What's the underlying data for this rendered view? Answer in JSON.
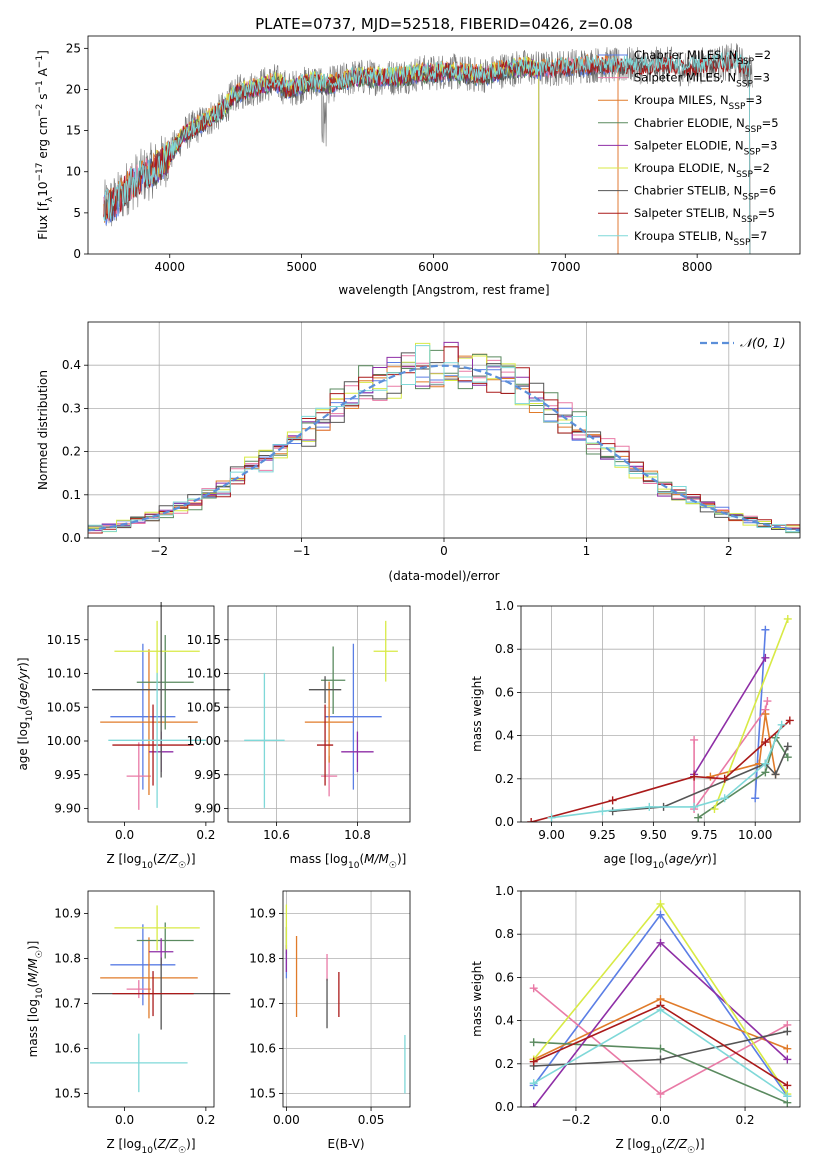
{
  "figure": {
    "title": "PLATE=0737, MJD=52518, FIBERID=0426, z=0.08"
  },
  "colors": {
    "chabrier_miles": "#5b7ee5",
    "salpeter_miles": "#e97aa6",
    "kroupa_miles": "#e07b2a",
    "chabrier_elodie": "#5a8a5f",
    "salpeter_elodie": "#8e2ea6",
    "kroupa_elodie": "#d8ea45",
    "chabrier_stelib": "#555555",
    "salpeter_stelib": "#aa1a1a",
    "kroupa_stelib": "#7fd8d8",
    "normal_curve": "#5b8fd9",
    "grid": "#b0b0b0"
  },
  "chart_data": [
    {
      "type": "line",
      "panel": "spectrum",
      "title": "PLATE=0737, MJD=52518, FIBERID=0426, z=0.08",
      "xlabel": "wavelength [Angstrom, rest frame]",
      "ylabel": "Flux [f_λ 10^-17 erg cm^-2 s^-1 A^-1]",
      "xlim": [
        3380,
        8780
      ],
      "ylim": [
        0,
        26.5
      ],
      "xticks": [
        4000,
        5000,
        6000,
        7000,
        8000
      ],
      "yticks": [
        0,
        5,
        10,
        15,
        20,
        25
      ],
      "grid": false,
      "legend_position": "top-right",
      "data_continuum_x": [
        3500,
        3600,
        3700,
        3800,
        3900,
        4000,
        4100,
        4200,
        4300,
        4400,
        4500,
        4600,
        4700,
        4800,
        4900,
        5000,
        5100,
        5200,
        5300,
        5400,
        5500,
        5600,
        5700,
        5800,
        5900,
        6000,
        6100,
        6200,
        6300,
        6400,
        6500,
        6600,
        6700,
        6800,
        6900,
        7000,
        7100,
        7200,
        7300,
        7400,
        7500,
        7600,
        7700,
        7800,
        7900,
        8000,
        8100,
        8200,
        8300,
        8400
      ],
      "data_continuum_y": [
        5.5,
        6.5,
        8.5,
        9.5,
        10.5,
        12.0,
        14.5,
        15.5,
        16.5,
        17.5,
        19.5,
        20.0,
        20.5,
        21.0,
        20.0,
        20.5,
        21.0,
        20.5,
        21.0,
        21.5,
        21.5,
        21.5,
        21.5,
        21.7,
        22.0,
        22.0,
        22.3,
        22.0,
        21.8,
        21.8,
        22.3,
        22.5,
        22.7,
        22.5,
        22.5,
        22.8,
        22.8,
        23.0,
        23.0,
        22.8,
        23.0,
        22.8,
        23.0,
        23.0,
        22.5,
        22.8,
        23.2,
        23.2,
        23.5,
        22.0
      ],
      "series": [
        {
          "name": "Chabrier MILES, N_SSP=2",
          "key": "chabrier_miles",
          "x_range": [
            3500,
            7400
          ]
        },
        {
          "name": "Salpeter MILES, N_SSP=3",
          "key": "salpeter_miles",
          "x_range": [
            3500,
            7400
          ]
        },
        {
          "name": "Kroupa MILES, N_SSP=3",
          "key": "kroupa_miles",
          "x_range": [
            3500,
            7400
          ]
        },
        {
          "name": "Chabrier ELODIE, N_SSP=5",
          "key": "chabrier_elodie",
          "x_range": [
            3900,
            6800
          ]
        },
        {
          "name": "Salpeter ELODIE, N_SSP=3",
          "key": "salpeter_elodie",
          "x_range": [
            3900,
            6800
          ]
        },
        {
          "name": "Kroupa ELODIE, N_SSP=2",
          "key": "kroupa_elodie",
          "x_range": [
            3900,
            6800
          ]
        },
        {
          "name": "Chabrier STELIB, N_SSP=6",
          "key": "chabrier_stelib",
          "x_range": [
            3500,
            8400
          ]
        },
        {
          "name": "Salpeter STELIB, N_SSP=5",
          "key": "salpeter_stelib",
          "x_range": [
            3500,
            8400
          ]
        },
        {
          "name": "Kroupa STELIB, N_SSP=7",
          "key": "kroupa_stelib",
          "x_range": [
            3500,
            8400
          ]
        }
      ]
    },
    {
      "type": "histogram",
      "panel": "residuals",
      "xlabel": "(data-model)/error",
      "ylabel": "Normed distribution",
      "xlim": [
        -2.5,
        2.5
      ],
      "ylim": [
        0,
        0.5
      ],
      "xticks": [
        -2,
        -1,
        0,
        1,
        2
      ],
      "yticks": [
        0.0,
        0.1,
        0.2,
        0.3,
        0.4
      ],
      "grid": true,
      "legend_position": "top-right",
      "legend_label": "N(0,1)",
      "bin_width": 0.1
    },
    {
      "type": "scatter",
      "panel": "age-vs-Z",
      "xlabel": "Z [log10(Z/Z☉)]",
      "ylabel": "age [log10(age/yr)]",
      "xlim": [
        -0.09,
        0.22
      ],
      "ylim": [
        9.88,
        10.2
      ],
      "xticks": [
        0.0,
        0.2
      ],
      "yticks": [
        9.9,
        9.95,
        10.0,
        10.05,
        10.1,
        10.15
      ],
      "grid": false,
      "points": [
        {
          "key": "chabrier_miles",
          "x": 0.045,
          "xerr": 0.08,
          "y": 10.036,
          "yerr": 0.108
        },
        {
          "key": "salpeter_miles",
          "x": 0.035,
          "xerr": 0.03,
          "y": 9.948,
          "yerr": 0.05
        },
        {
          "key": "kroupa_miles",
          "x": 0.06,
          "xerr": 0.12,
          "y": 10.028,
          "yerr": 0.108
        },
        {
          "key": "chabrier_elodie",
          "x": 0.1,
          "xerr": 0.07,
          "y": 10.087,
          "yerr": 0.07
        },
        {
          "key": "salpeter_elodie",
          "x": 0.09,
          "xerr": 0.03,
          "y": 9.984,
          "yerr": 0.03
        },
        {
          "key": "kroupa_elodie",
          "x": 0.08,
          "xerr": 0.105,
          "y": 10.133,
          "yerr": 0.045
        },
        {
          "key": "chabrier_stelib",
          "x": 0.09,
          "xerr": 0.17,
          "y": 10.076,
          "yerr": 0.13
        },
        {
          "key": "salpeter_stelib",
          "x": 0.07,
          "xerr": 0.1,
          "y": 9.994,
          "yerr": 0.06
        },
        {
          "key": "kroupa_stelib",
          "x": 0.08,
          "xerr": 0.12,
          "y": 10.001,
          "yerr": 0.1
        }
      ]
    },
    {
      "type": "scatter",
      "panel": "age-vs-mass",
      "xlabel": "mass [log10(M/M☉)]",
      "ylabel": "",
      "xlim": [
        10.48,
        10.93
      ],
      "ylim": [
        9.88,
        10.2
      ],
      "xticks": [
        10.6,
        10.8
      ],
      "yticks": [
        9.9,
        9.95,
        10.0,
        10.05,
        10.1,
        10.15
      ],
      "grid": true,
      "points": [
        {
          "key": "chabrier_miles",
          "x": 10.79,
          "xerr": 0.07,
          "y": 10.036,
          "yerr": 0.108
        },
        {
          "key": "salpeter_miles",
          "x": 10.73,
          "xerr": 0.02,
          "y": 9.948,
          "yerr": 0.03
        },
        {
          "key": "kroupa_miles",
          "x": 10.73,
          "xerr": 0.06,
          "y": 10.028,
          "yerr": 0.06
        },
        {
          "key": "chabrier_elodie",
          "x": 10.74,
          "xerr": 0.03,
          "y": 10.09,
          "yerr": 0.05
        },
        {
          "key": "salpeter_elodie",
          "x": 10.8,
          "xerr": 0.04,
          "y": 9.984,
          "yerr": 0.03
        },
        {
          "key": "kroupa_elodie",
          "x": 10.87,
          "xerr": 0.03,
          "y": 10.133,
          "yerr": 0.045
        },
        {
          "key": "chabrier_stelib",
          "x": 10.72,
          "xerr": 0.04,
          "y": 10.076,
          "yerr": 0.02
        },
        {
          "key": "salpeter_stelib",
          "x": 10.72,
          "xerr": 0.02,
          "y": 9.994,
          "yerr": 0.06
        },
        {
          "key": "kroupa_stelib",
          "x": 10.57,
          "xerr": 0.05,
          "y": 10.001,
          "yerr": 0.1
        }
      ]
    },
    {
      "type": "line",
      "panel": "mass-weight-vs-age",
      "xlabel": "age [log10(age/yr)]",
      "ylabel": "mass weight",
      "xlim": [
        8.85,
        10.22
      ],
      "ylim": [
        0,
        1.0
      ],
      "xticks": [
        9.0,
        9.25,
        9.5,
        9.75,
        10.0
      ],
      "yticks": [
        0.0,
        0.2,
        0.4,
        0.6,
        0.8,
        1.0
      ],
      "grid": true,
      "series": [
        {
          "key": "chabrier_miles",
          "x": [
            10.0,
            10.05
          ],
          "y": [
            0.11,
            0.89
          ]
        },
        {
          "key": "salpeter_miles",
          "x": [
            9.7,
            9.7,
            10.05,
            10.06
          ],
          "y": [
            0.38,
            0.06,
            0.52,
            0.56
          ]
        },
        {
          "key": "kroupa_miles",
          "x": [
            9.78,
            10.02,
            10.05,
            10.1
          ],
          "y": [
            0.21,
            0.27,
            0.5,
            0.22
          ]
        },
        {
          "key": "chabrier_elodie",
          "x": [
            9.72,
            10.05,
            10.1,
            10.16
          ],
          "y": [
            0.02,
            0.23,
            0.39,
            0.3
          ]
        },
        {
          "key": "salpeter_elodie",
          "x": [
            9.7,
            10.05
          ],
          "y": [
            0.22,
            0.76
          ]
        },
        {
          "key": "kroupa_elodie",
          "x": [
            9.8,
            10.16
          ],
          "y": [
            0.06,
            0.94
          ]
        },
        {
          "key": "chabrier_stelib",
          "x": [
            9.3,
            9.55,
            10.05,
            10.1,
            10.16
          ],
          "y": [
            0.05,
            0.07,
            0.27,
            0.22,
            0.35
          ]
        },
        {
          "key": "salpeter_stelib",
          "x": [
            8.9,
            9.3,
            9.7,
            9.85,
            10.05,
            10.17
          ],
          "y": [
            0.0,
            0.1,
            0.21,
            0.2,
            0.37,
            0.47
          ]
        },
        {
          "key": "kroupa_stelib",
          "x": [
            9.0,
            9.25,
            9.48,
            9.7,
            9.85,
            10.05,
            10.13
          ],
          "y": [
            0.02,
            0.05,
            0.07,
            0.07,
            0.11,
            0.27,
            0.45
          ]
        }
      ]
    },
    {
      "type": "scatter",
      "panel": "mass-vs-Z",
      "xlabel": "Z [log10(Z/Z☉)]",
      "ylabel": "mass [log10(M/M☉)]",
      "xlim": [
        -0.09,
        0.22
      ],
      "ylim": [
        10.47,
        10.95
      ],
      "xticks": [
        0.0,
        0.2
      ],
      "yticks": [
        10.5,
        10.6,
        10.7,
        10.8,
        10.9
      ],
      "grid": false,
      "points": [
        {
          "key": "chabrier_miles",
          "x": 0.045,
          "xerr": 0.08,
          "y": 10.786,
          "yerr": 0.09
        },
        {
          "key": "salpeter_miles",
          "x": 0.035,
          "xerr": 0.03,
          "y": 10.732,
          "yerr": 0.02
        },
        {
          "key": "kroupa_miles",
          "x": 0.06,
          "xerr": 0.12,
          "y": 10.757,
          "yerr": 0.09
        },
        {
          "key": "chabrier_elodie",
          "x": 0.1,
          "xerr": 0.07,
          "y": 10.84,
          "yerr": 0.04
        },
        {
          "key": "salpeter_elodie",
          "x": 0.09,
          "xerr": 0.03,
          "y": 10.815,
          "yerr": 0.03
        },
        {
          "key": "kroupa_elodie",
          "x": 0.08,
          "xerr": 0.105,
          "y": 10.868,
          "yerr": 0.05
        },
        {
          "key": "chabrier_stelib",
          "x": 0.09,
          "xerr": 0.17,
          "y": 10.722,
          "yerr": 0.08
        },
        {
          "key": "salpeter_stelib",
          "x": 0.07,
          "xerr": 0.1,
          "y": 10.722,
          "yerr": 0.05
        },
        {
          "key": "kroupa_stelib",
          "x": 0.035,
          "xerr": 0.12,
          "y": 10.568,
          "yerr": 0.065
        }
      ]
    },
    {
      "type": "scatter",
      "panel": "mass-vs-EBV",
      "xlabel": "E(B-V)",
      "ylabel": "",
      "xlim": [
        -0.002,
        0.073
      ],
      "ylim": [
        10.47,
        10.95
      ],
      "xticks": [
        0.0,
        0.05
      ],
      "yticks": [
        10.5,
        10.6,
        10.7,
        10.8,
        10.9
      ],
      "grid": true,
      "points": [
        {
          "key": "chabrier_miles",
          "x": 0.0,
          "xerr": 0.0,
          "y": 10.786,
          "yerr": 0.03
        },
        {
          "key": "salpeter_miles",
          "x": 0.024,
          "xerr": 0.0,
          "y": 10.78,
          "yerr": 0.03
        },
        {
          "key": "kroupa_miles",
          "x": 0.006,
          "xerr": 0.0,
          "y": 10.76,
          "yerr": 0.09
        },
        {
          "key": "chabrier_elodie",
          "x": 0.0,
          "xerr": 0.0,
          "y": 10.84,
          "yerr": 0.03
        },
        {
          "key": "salpeter_elodie",
          "x": 0.0,
          "xerr": 0.0,
          "y": 10.8,
          "yerr": 0.03
        },
        {
          "key": "kroupa_elodie",
          "x": 0.0,
          "xerr": 0.0,
          "y": 10.87,
          "yerr": 0.05
        },
        {
          "key": "chabrier_stelib",
          "x": 0.024,
          "xerr": 0.0,
          "y": 10.7,
          "yerr": 0.055
        },
        {
          "key": "salpeter_stelib",
          "x": 0.031,
          "xerr": 0.0,
          "y": 10.72,
          "yerr": 0.05
        },
        {
          "key": "kroupa_stelib",
          "x": 0.07,
          "xerr": 0.0,
          "y": 10.565,
          "yerr": 0.065
        }
      ]
    },
    {
      "type": "line",
      "panel": "mass-weight-vs-Z",
      "xlabel": "Z [log10(Z/Z☉)]",
      "ylabel": "mass weight",
      "xlim": [
        -0.33,
        0.33
      ],
      "ylim": [
        0,
        1.0
      ],
      "xticks": [
        -0.2,
        0.0,
        0.2
      ],
      "yticks": [
        0.0,
        0.2,
        0.4,
        0.6,
        0.8,
        1.0
      ],
      "grid": true,
      "series": [
        {
          "key": "chabrier_miles",
          "x": [
            -0.3,
            0.0,
            0.3
          ],
          "y": [
            0.1,
            0.89,
            0.05
          ]
        },
        {
          "key": "salpeter_miles",
          "x": [
            -0.3,
            0.0,
            0.3
          ],
          "y": [
            0.55,
            0.06,
            0.38
          ]
        },
        {
          "key": "kroupa_miles",
          "x": [
            -0.3,
            0.0,
            0.3
          ],
          "y": [
            0.22,
            0.5,
            0.27
          ]
        },
        {
          "key": "chabrier_elodie",
          "x": [
            -0.3,
            0.0,
            0.3
          ],
          "y": [
            0.3,
            0.27,
            0.02
          ]
        },
        {
          "key": "salpeter_elodie",
          "x": [
            -0.3,
            0.0,
            0.3
          ],
          "y": [
            0.0,
            0.76,
            0.22
          ]
        },
        {
          "key": "kroupa_elodie",
          "x": [
            -0.3,
            0.0,
            0.3
          ],
          "y": [
            0.22,
            0.94,
            0.06
          ]
        },
        {
          "key": "chabrier_stelib",
          "x": [
            -0.3,
            0.0,
            0.3
          ],
          "y": [
            0.19,
            0.22,
            0.35
          ]
        },
        {
          "key": "salpeter_stelib",
          "x": [
            -0.3,
            0.0,
            0.3
          ],
          "y": [
            0.21,
            0.47,
            0.1
          ]
        },
        {
          "key": "kroupa_stelib",
          "x": [
            -0.3,
            0.0,
            0.3
          ],
          "y": [
            0.11,
            0.45,
            0.05
          ]
        }
      ]
    }
  ]
}
